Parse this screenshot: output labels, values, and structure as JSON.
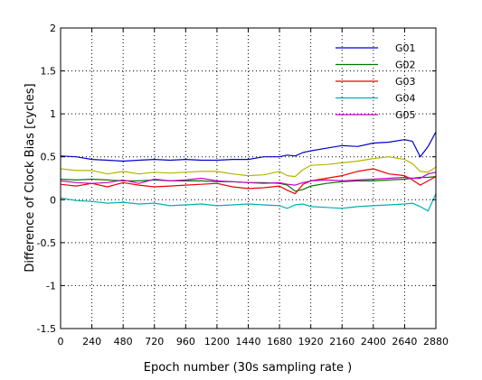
{
  "chart_data": {
    "type": "line",
    "title": "",
    "xlabel": "Epoch number (30s sampling rate )",
    "ylabel": "Difference of Clock Bias [cycles]",
    "xlim": [
      0,
      2880
    ],
    "ylim": [
      -1.5,
      2
    ],
    "xticks": [
      0,
      240,
      480,
      720,
      960,
      1200,
      1440,
      1680,
      1920,
      2160,
      2400,
      2640,
      2880
    ],
    "yticks": [
      -1.5,
      -1,
      -0.5,
      0,
      0.5,
      1,
      1.5,
      2
    ],
    "xtick_labels": [
      "0",
      "240",
      "480",
      "720",
      "960",
      "1200",
      "1440",
      "1680",
      "1920",
      "2160",
      "2400",
      "2640",
      "2880"
    ],
    "ytick_labels": [
      "-1.5",
      "-1",
      "-0.5",
      "0",
      "0.5",
      "1",
      "1.5",
      "2"
    ],
    "grid": true,
    "grid_style": "dotted",
    "legend_position": "top-right",
    "x": [
      0,
      120,
      240,
      360,
      480,
      600,
      720,
      840,
      960,
      1080,
      1200,
      1320,
      1440,
      1560,
      1680,
      1740,
      1800,
      1860,
      1920,
      2040,
      2160,
      2280,
      2400,
      2520,
      2640,
      2700,
      2760,
      2820,
      2880
    ],
    "series": [
      {
        "name": "G01",
        "color": "#0000cc",
        "values": [
          0.51,
          0.5,
          0.47,
          0.46,
          0.45,
          0.46,
          0.47,
          0.46,
          0.47,
          0.46,
          0.46,
          0.47,
          0.47,
          0.5,
          0.5,
          0.52,
          0.51,
          0.55,
          0.57,
          0.6,
          0.63,
          0.62,
          0.66,
          0.67,
          0.7,
          0.68,
          0.5,
          0.62,
          0.79
        ]
      },
      {
        "name": "G02",
        "color": "#007700",
        "values": [
          0.24,
          0.23,
          0.24,
          0.23,
          0.22,
          0.22,
          0.23,
          0.22,
          0.22,
          0.22,
          0.21,
          0.21,
          0.2,
          0.2,
          0.19,
          0.17,
          0.1,
          0.12,
          0.16,
          0.19,
          0.21,
          0.22,
          0.22,
          0.23,
          0.24,
          0.25,
          0.26,
          0.26,
          0.27
        ]
      },
      {
        "name": "G03",
        "color": "#ee0000",
        "values": [
          0.18,
          0.16,
          0.19,
          0.15,
          0.2,
          0.17,
          0.15,
          0.16,
          0.17,
          0.18,
          0.19,
          0.15,
          0.13,
          0.14,
          0.16,
          0.11,
          0.07,
          0.18,
          0.22,
          0.25,
          0.28,
          0.33,
          0.36,
          0.3,
          0.28,
          0.23,
          0.17,
          0.22,
          0.27
        ]
      },
      {
        "name": "G04",
        "color": "#00b0b0",
        "values": [
          0.02,
          -0.01,
          -0.02,
          -0.04,
          -0.03,
          -0.05,
          -0.04,
          -0.07,
          -0.06,
          -0.05,
          -0.07,
          -0.06,
          -0.05,
          -0.06,
          -0.07,
          -0.1,
          -0.06,
          -0.05,
          -0.08,
          -0.09,
          -0.1,
          -0.08,
          -0.07,
          -0.06,
          -0.05,
          -0.04,
          -0.08,
          -0.13,
          0.07
        ]
      },
      {
        "name": "G05",
        "color": "#cc00cc",
        "values": [
          0.22,
          0.2,
          0.19,
          0.2,
          0.23,
          0.19,
          0.24,
          0.22,
          0.23,
          0.25,
          0.22,
          0.21,
          0.2,
          0.19,
          0.2,
          0.18,
          0.17,
          0.2,
          0.22,
          0.23,
          0.22,
          0.23,
          0.24,
          0.25,
          0.26,
          0.25,
          0.25,
          0.3,
          0.32
        ]
      },
      {
        "name": "",
        "color": "#b5b500",
        "values": [
          0.36,
          0.34,
          0.34,
          0.3,
          0.33,
          0.3,
          0.32,
          0.31,
          0.32,
          0.33,
          0.33,
          0.3,
          0.28,
          0.29,
          0.33,
          0.28,
          0.27,
          0.35,
          0.4,
          0.41,
          0.43,
          0.45,
          0.48,
          0.5,
          0.47,
          0.42,
          0.33,
          0.32,
          0.38
        ]
      }
    ]
  }
}
